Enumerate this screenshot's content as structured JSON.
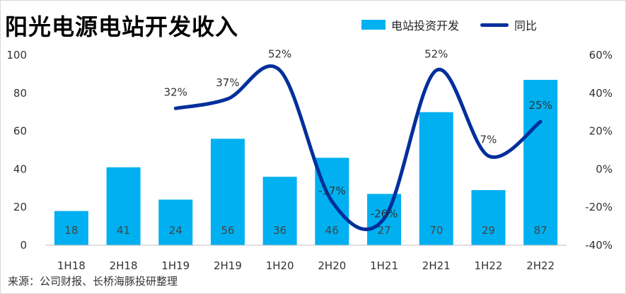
{
  "title": "阳光电源电站开发收入",
  "legend": {
    "bar_label": "电站投资开发",
    "line_label": "同比"
  },
  "source": "来源：公司财报、长桥海豚投研整理",
  "colors": {
    "bar": "#00b0f0",
    "line": "#002f9b"
  },
  "chart_data": {
    "type": "bar",
    "categories": [
      "1H18",
      "2H18",
      "1H19",
      "2H19",
      "1H20",
      "2H20",
      "1H21",
      "2H21",
      "1H22",
      "2H22"
    ],
    "series": [
      {
        "name": "电站投资开发",
        "type": "bar",
        "axis": "left",
        "values": [
          18,
          41,
          24,
          56,
          36,
          46,
          27,
          70,
          29,
          87
        ]
      },
      {
        "name": "同比",
        "type": "line",
        "axis": "right",
        "values": [
          null,
          null,
          32,
          37,
          52,
          -17,
          -26,
          52,
          7,
          25
        ]
      }
    ],
    "y_left": {
      "ylim": [
        0,
        100
      ],
      "ticks": [
        "0",
        "20",
        "40",
        "60",
        "80",
        "100"
      ]
    },
    "y_right": {
      "ylim": [
        -40,
        60
      ],
      "ticks": [
        "-40%",
        "-20%",
        "0%",
        "20%",
        "40%",
        "60%"
      ]
    },
    "bar_labels": [
      "18",
      "41",
      "24",
      "56",
      "36",
      "46",
      "27",
      "70",
      "29",
      "87"
    ],
    "line_labels": [
      "",
      "",
      "32%",
      "37%",
      "52%",
      "-17%",
      "-26%",
      "52%",
      "7%",
      "25%"
    ]
  }
}
